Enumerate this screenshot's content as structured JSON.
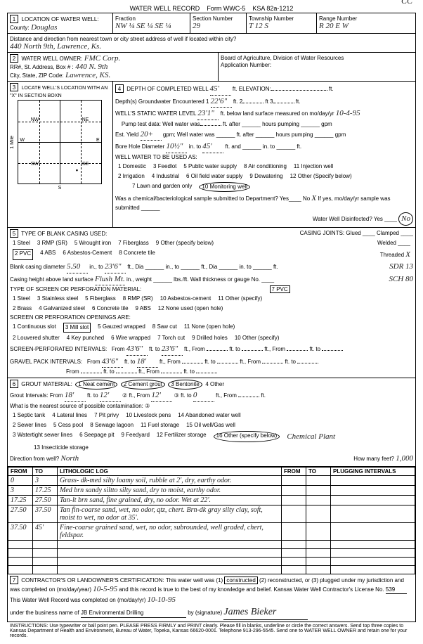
{
  "header": {
    "title": "WATER WELL RECORD",
    "form": "Form WWC-5",
    "ksa": "KSA 82a-1212",
    "cc": "CC"
  },
  "location": {
    "section_label": "1",
    "title": "LOCATION OF WATER WELL:",
    "county_label": "County:",
    "county": "Douglas",
    "fraction_label": "Fraction",
    "fraction": "NW ¼ SE ¼ SE ¼",
    "section_num_label": "Section Number",
    "section_num": "29",
    "township_label": "Township Number",
    "township": "T 12 S",
    "range_label": "Range Number",
    "range": "R 20 E W",
    "distance_label": "Distance and direction from nearest town or city street address of well if located within city?",
    "distance": "440 North 9th, Lawrence, Ks."
  },
  "owner": {
    "section_label": "2",
    "title": "WATER WELL OWNER:",
    "name": "FMC Corp.",
    "addr_label": "RR#, St. Address, Box # :",
    "addr": "440 N. 9th",
    "city_label": "City, State, ZIP Code:",
    "city": "Lawrence, KS.",
    "board": "Board of Agriculture, Division of Water Resources",
    "app_label": "Application Number:"
  },
  "locate": {
    "section_label": "3",
    "title": "LOCATE WELL'S LOCATION WITH AN \"X\" IN SECTION BOX:",
    "nw": "NW",
    "ne": "NE",
    "sw": "SW",
    "se": "SE",
    "w": "W",
    "e": "E",
    "n": "N",
    "s": "S",
    "mile": "1 Mile"
  },
  "depth": {
    "section_label": "4",
    "title": "DEPTH OF COMPLETED WELL",
    "depth": "45'",
    "elev_label": "ft. ELEVATION:",
    "gw_label": "Depth(s) Groundwater Encountered 1",
    "gw1": "22'6\"",
    "gw2_label": "ft. 2",
    "gw3_label": "ft 3",
    "static_label": "WELL'S STATIC WATER LEVEL",
    "static": "23'1\"",
    "static_suffix": "ft. below land surface measured on mo/day/yr",
    "static_date": "10-4-95",
    "pump_label": "Pump test data: Well water was",
    "pump_suffix": "ft. after ______ hours pumping ______ gpm",
    "yield_label": "Est. Yield",
    "yield": "20+",
    "yield_suffix": "gpm; Well water was ______ ft. after ______ hours pumping ______ gpm",
    "bore_label": "Bore Hole Diameter",
    "bore": "10½\"",
    "bore_to": "in. to",
    "bore_depth": "45'",
    "bore_suffix": "ft. and ______ in. to ______ ft.",
    "use_label": "WELL WATER TO BE USED AS:",
    "uses": [
      "1 Domestic",
      "2 Irrigation",
      "3 Feedlot",
      "4 Industrial",
      "5 Public water supply",
      "6 Oil field water supply",
      "7 Lawn and garden only",
      "8 Air conditioning",
      "9 Dewatering",
      "10 Monitoring well",
      "11 Injection well",
      "12 Other (Specify below)"
    ],
    "chem_label": "Was a chemical/bacteriological sample submitted to Department? Yes____ No",
    "chem_no": "X",
    "chem_suffix": "If yes, mo/day/yr sample was submitted ______",
    "disinfect_label": "Water Well Disinfected? Yes ____",
    "disinfect": "No"
  },
  "casing": {
    "section_label": "5",
    "title": "TYPE OF BLANK CASING USED:",
    "opts": [
      "1 Steel",
      "2 PVC",
      "3 RMP (SR)",
      "4 ABS",
      "5 Wrought iron",
      "6 Asbestos-Cement",
      "7 Fiberglass",
      "8 Concrete tile",
      "9 Other (specify below)"
    ],
    "joints_label": "CASING JOINTS: Glued ____ Clamped ____",
    "welded": "Welded ____",
    "threaded": "Threaded",
    "threaded_val": "X",
    "dia_label": "Blank casing diameter",
    "dia": "5.50",
    "dia_to": "in., to",
    "dia_depth": "23'6\"",
    "dia_suffix": "ft., Dia ______ in., to ______ ft., Dia ______ in. to ______ ft.",
    "sdr": "SDR 13",
    "height_label": "Casing height above land surface",
    "height": "Flush Mt.",
    "height_suffix": "in., weight ______ lbs./ft. Wall thickness or gauge No. ____",
    "sch": "SCH 80",
    "screen_label": "TYPE OF SCREEN OR PERFORATION MATERIAL:",
    "screen_opts": [
      "1 Steel",
      "2 Brass",
      "3 Stainless steel",
      "4 Galvanized steel",
      "5 Fiberglass",
      "6 Concrete tile",
      "7 PVC",
      "8 RMP (SR)",
      "9 ABS",
      "10 Asbestos-cement",
      "11 Other (specify)",
      "12 None used (open hole)"
    ],
    "open_label": "SCREEN OR PERFORATION OPENINGS ARE:",
    "open_opts": [
      "1 Continuous slot",
      "2 Louvered shutter",
      "3 Mill slot",
      "4 Key punched",
      "5 Gauzed wrapped",
      "6 Wire wrapped",
      "7 Torch cut",
      "8 Saw cut",
      "9 Drilled holes",
      "10 Other (specify)",
      "11 None (open hole)"
    ],
    "perf_label": "SCREEN-PERFORATED INTERVALS:",
    "perf_from": "43'6\"",
    "perf_to": "23'6\"",
    "gravel_label": "GRAVEL PACK INTERVALS:",
    "gravel_from": "43'6\"",
    "gravel_to": "18'"
  },
  "grout": {
    "section_label": "6",
    "title": "GROUT MATERIAL:",
    "opts": [
      "1 Neat cement",
      "2 Cement grout",
      "3 Bentonite",
      "4 Other"
    ],
    "int_label": "Grout Intervals: From",
    "int_from": "18'",
    "int_to": "12'",
    "int_from2": "12'",
    "int_to2": "0",
    "source_label": "What is the nearest source of possible contamination:",
    "source_opts": [
      "1 Septic tank",
      "2 Sewer lines",
      "3 Watertight sewer lines",
      "4 Lateral lines",
      "5 Cess pool",
      "6 Seepage pit",
      "7 Pit privy",
      "8 Sewage lagoon",
      "9 Feedyard",
      "10 Livestock pens",
      "11 Fuel storage",
      "12 Fertilizer storage",
      "13 Insecticide storage",
      "14 Abandoned water well",
      "15 Oil well/Gas well",
      "16 Other (specify below)"
    ],
    "other": "Chemical Plant",
    "dir_label": "Direction from well?",
    "dir": "North",
    "feet_label": "How many feet?",
    "feet": "1,000"
  },
  "lithology": {
    "headers": [
      "FROM",
      "TO",
      "LITHOLOGIC LOG",
      "FROM",
      "TO",
      "PLUGGING INTERVALS"
    ],
    "rows": [
      {
        "from": "0",
        "to": "3",
        "log": "Grass- dk-med silty loamy soil, rubble at 2', dry, earthy odor."
      },
      {
        "from": "3",
        "to": "17.25",
        "log": "Med brn sandy siltto silty sand, dry to moist, earthy odor."
      },
      {
        "from": "17.25",
        "to": "27.50",
        "log": "Tan-lt brn sand, fine grained, dry, no odor. Wet at 22'."
      },
      {
        "from": "27.50",
        "to": "37.50",
        "log": "Tan fin-coarse sand, wet, no odor, qtz, chert. Brn-dk gray silty clay, soft, moist to wet, no odor at 35'."
      },
      {
        "from": "37.50",
        "to": "45'",
        "log": "Fine-coarse grained sand, wet, no odor, subrounded, well graded, chert, feldspar."
      }
    ]
  },
  "cert": {
    "section_label": "7",
    "text1": "CONTRACTOR'S OR LANDOWNER'S CERTIFICATION: This water well was (1)",
    "constructed": "constructed",
    "text2": "(2) reconstructed, or (3) plugged under my jurisdiction and was completed on (mo/day/year)",
    "date1": "10-5-95",
    "text3": "and this record is true to the best of my knowledge and belief. Kansas Water Well Contractor's License No.",
    "license": "539",
    "text4": "This Water Well Record was completed on (mo/day/yr)",
    "date2": "10-10-95",
    "text5": "under the business name of",
    "business": "JB Environmental Drilling",
    "sig_label": "by (signature)",
    "signature": "James Bieker"
  },
  "footer": "INSTRUCTIONS: Use typewriter or ball point pen. PLEASE PRESS FIRMLY and PRINT clearly. Please fill in blanks, underline or circle the correct answers. Send top three copies to Kansas Department of Health and Environment, Bureau of Water, Topeka, Kansas 66620-0001. Telephone 913-296-5545. Send one to WATER WELL OWNER and retain one for your records."
}
